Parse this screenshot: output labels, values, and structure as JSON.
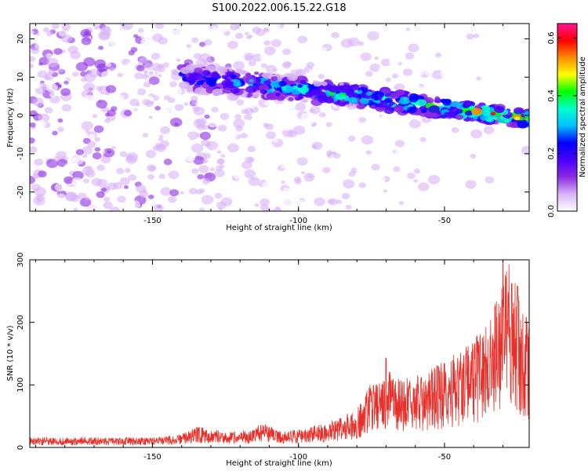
{
  "title": "S100.2022.006.15.22.G18",
  "chart_data": [
    {
      "type": "heatmap",
      "xlabel": "Height of straight line (km)",
      "ylabel": "Frequency (Hz)",
      "xlim": [
        -192,
        -21
      ],
      "ylim": [
        -25,
        24
      ],
      "xticks": [
        -150,
        -100,
        -50
      ],
      "yticks": [
        -20,
        -10,
        0,
        10,
        20
      ],
      "colorbar": {
        "label": "Normalized spectral amplitude",
        "range": [
          0,
          0.65
        ],
        "ticks": [
          0.0,
          0.2,
          0.4,
          0.6
        ],
        "colors": [
          "#ffffff",
          "#d8b4f8",
          "#8a2be2",
          "#4b00ff",
          "#0000ff",
          "#00bfff",
          "#00ffcc",
          "#00ff00",
          "#ffff00",
          "#ff8c00",
          "#ff0000",
          "#ff1493"
        ]
      },
      "ridge": {
        "start": [
          -140,
          10
        ],
        "mid": [
          -90,
          6
        ],
        "end": [
          -21,
          -1
        ],
        "amplitude_start": 0.25,
        "amplitude_end": 0.55
      }
    },
    {
      "type": "line",
      "xlabel": "Height of straight line (km)",
      "ylabel": "SNR (10 * v/v)",
      "xlim": [
        -192,
        -21
      ],
      "ylim": [
        0,
        300
      ],
      "xticks": [
        -150,
        -100,
        -50
      ],
      "yticks": [
        0,
        100,
        200,
        300
      ],
      "color": "#e8302a",
      "envelope": [
        [
          -192,
          14
        ],
        [
          -150,
          14
        ],
        [
          -140,
          18
        ],
        [
          -135,
          30
        ],
        [
          -130,
          25
        ],
        [
          -120,
          22
        ],
        [
          -112,
          35
        ],
        [
          -105,
          22
        ],
        [
          -100,
          25
        ],
        [
          -90,
          35
        ],
        [
          -80,
          55
        ],
        [
          -75,
          95
        ],
        [
          -70,
          110
        ],
        [
          -65,
          95
        ],
        [
          -60,
          100
        ],
        [
          -55,
          110
        ],
        [
          -50,
          120
        ],
        [
          -45,
          135
        ],
        [
          -40,
          150
        ],
        [
          -35,
          175
        ],
        [
          -30,
          230
        ],
        [
          -27,
          270
        ],
        [
          -25,
          220
        ],
        [
          -22,
          180
        ],
        [
          -21,
          170
        ]
      ],
      "peaks": [
        [
          -70,
          143
        ],
        [
          -30,
          300
        ],
        [
          -27,
          262
        ],
        [
          -25,
          258
        ],
        [
          -22,
          208
        ]
      ]
    }
  ]
}
